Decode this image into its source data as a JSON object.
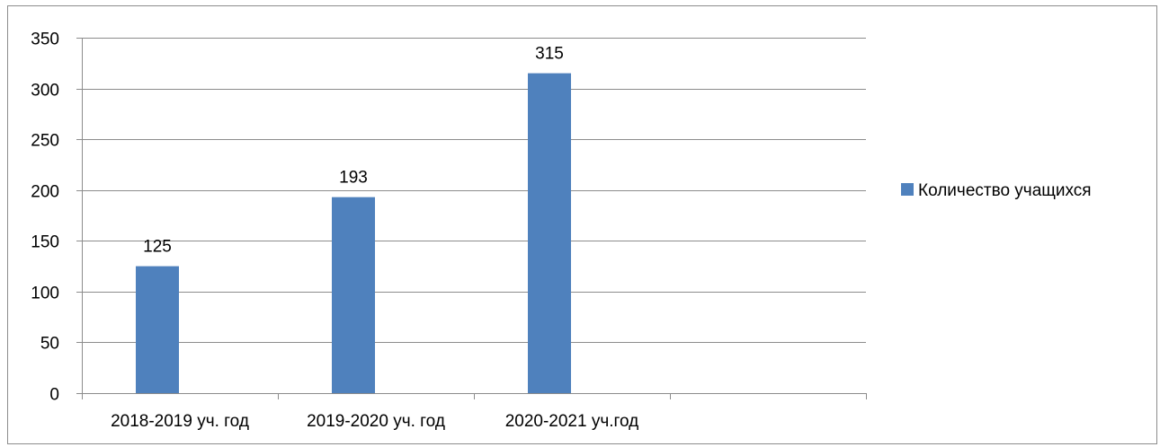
{
  "chart_data": {
    "type": "bar",
    "categories": [
      "2018-2019 уч. год",
      "2019-2020 уч. год",
      "2020-2021 уч.год",
      ""
    ],
    "series": [
      {
        "name": "Количество учащихся",
        "values": [
          125,
          193,
          315,
          null
        ],
        "color": "#4F81BD"
      }
    ],
    "ylim": [
      0,
      350
    ],
    "yticks": [
      0,
      50,
      100,
      150,
      200,
      250,
      300,
      350
    ],
    "grid": true,
    "legend_position": "right",
    "title": "",
    "xlabel": "",
    "ylabel": ""
  }
}
